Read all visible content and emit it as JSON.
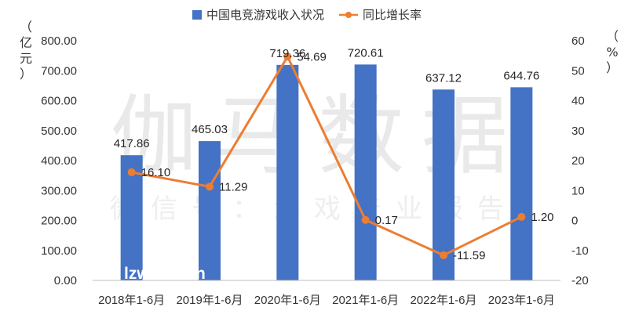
{
  "chart_data": {
    "type": "bar+line",
    "categories": [
      "2018年1-6月",
      "2019年1-6月",
      "2020年1-6月",
      "2021年1-6月",
      "2022年1-6月",
      "2023年1-6月"
    ],
    "series": [
      {
        "name": "中国电竞游戏收入状况",
        "type": "bar",
        "axis": "left",
        "color": "#4472C4",
        "values": [
          417.86,
          465.03,
          719.36,
          720.61,
          637.12,
          644.76
        ],
        "labels": [
          "417.86",
          "465.03",
          "719.36",
          "720.61",
          "637.12",
          "644.76"
        ]
      },
      {
        "name": "同比增长率",
        "type": "line",
        "axis": "right",
        "color": "#ED7D31",
        "values": [
          16.1,
          11.29,
          54.69,
          0.17,
          -11.59,
          1.2
        ],
        "labels": [
          "16.10",
          "11.29",
          "54.69",
          "0.17",
          "-11.59",
          "1.20"
        ]
      }
    ],
    "y_left": {
      "label": "（亿元）",
      "ylim": [
        0,
        800
      ],
      "ticks": [
        0,
        100,
        200,
        300,
        400,
        500,
        600,
        700,
        800
      ],
      "tick_labels": [
        "0.00",
        "100.00",
        "200.00",
        "300.00",
        "400.00",
        "500.00",
        "600.00",
        "700.00",
        "800.00"
      ]
    },
    "y_right": {
      "label": "（%）",
      "ylim": [
        -20,
        60
      ],
      "ticks": [
        -20,
        -10,
        0,
        10,
        20,
        30,
        40,
        50,
        60
      ],
      "tick_labels": [
        "-20",
        "-10",
        "0",
        "10",
        "20",
        "30",
        "40",
        "50",
        "60"
      ]
    },
    "legend_position": "top",
    "grid": false
  },
  "watermark": {
    "main": "伽马数据",
    "sub": "微信号：游戏产业报告"
  },
  "overlay_text": "lzw        cn"
}
